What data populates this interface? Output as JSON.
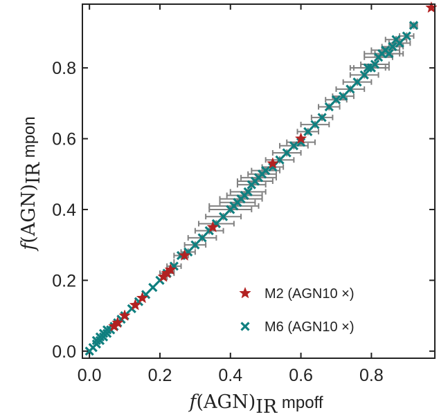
{
  "chart_data": {
    "type": "scatter",
    "xlabel": {
      "math": "f(AGN)",
      "sub": "IR",
      "text": " mpoff"
    },
    "ylabel": {
      "math": "f(AGN)",
      "sub": "IR",
      "text": " mpon"
    },
    "xlim": [
      -0.02,
      0.98
    ],
    "ylim": [
      -0.02,
      0.98
    ],
    "xticks": [
      0.0,
      0.2,
      0.4,
      0.6,
      0.8
    ],
    "yticks": [
      0.0,
      0.2,
      0.4,
      0.6,
      0.8
    ],
    "xtick_labels": [
      "0.0",
      "0.2",
      "0.4",
      "0.6",
      "0.8"
    ],
    "ytick_labels": [
      "0.0",
      "0.2",
      "0.4",
      "0.6",
      "0.8"
    ],
    "grid": false,
    "legend_position": "lower-right",
    "colors": {
      "M2": "#b22222",
      "M6": "#0f7f7f",
      "errorbar": "#808080",
      "axis": "#222222"
    },
    "series": [
      {
        "name": "M2 (AGN10 ×)",
        "marker": "star",
        "x": [
          0.07,
          0.08,
          0.1,
          0.13,
          0.15,
          0.21,
          0.22,
          0.23,
          0.27,
          0.35,
          0.52,
          0.6,
          0.97
        ],
        "y": [
          0.07,
          0.08,
          0.1,
          0.13,
          0.15,
          0.21,
          0.22,
          0.23,
          0.27,
          0.35,
          0.53,
          0.6,
          0.97
        ]
      },
      {
        "name": "M6 (AGN10 ×)",
        "marker": "x",
        "x": [
          0.0,
          0.01,
          0.02,
          0.02,
          0.03,
          0.03,
          0.04,
          0.04,
          0.05,
          0.05,
          0.06,
          0.07,
          0.08,
          0.09,
          0.1,
          0.12,
          0.14,
          0.16,
          0.18,
          0.2,
          0.22,
          0.24,
          0.26,
          0.28,
          0.3,
          0.32,
          0.34,
          0.36,
          0.38,
          0.4,
          0.41,
          0.42,
          0.43,
          0.44,
          0.45,
          0.46,
          0.47,
          0.48,
          0.49,
          0.5,
          0.52,
          0.54,
          0.56,
          0.58,
          0.6,
          0.62,
          0.64,
          0.66,
          0.68,
          0.7,
          0.72,
          0.74,
          0.76,
          0.78,
          0.79,
          0.8,
          0.81,
          0.82,
          0.83,
          0.84,
          0.85,
          0.86,
          0.87,
          0.88,
          0.9,
          0.92
        ],
        "y": [
          0.0,
          0.01,
          0.02,
          0.03,
          0.03,
          0.04,
          0.04,
          0.05,
          0.05,
          0.06,
          0.06,
          0.07,
          0.08,
          0.09,
          0.1,
          0.12,
          0.14,
          0.16,
          0.18,
          0.2,
          0.22,
          0.24,
          0.27,
          0.28,
          0.3,
          0.32,
          0.34,
          0.36,
          0.38,
          0.4,
          0.41,
          0.42,
          0.43,
          0.44,
          0.45,
          0.47,
          0.48,
          0.49,
          0.5,
          0.51,
          0.52,
          0.54,
          0.56,
          0.58,
          0.59,
          0.62,
          0.64,
          0.66,
          0.69,
          0.71,
          0.72,
          0.74,
          0.76,
          0.78,
          0.8,
          0.8,
          0.81,
          0.83,
          0.84,
          0.85,
          0.84,
          0.86,
          0.88,
          0.87,
          0.89,
          0.92
        ],
        "xerr": [
          0.0,
          0.0,
          0.0,
          0.0,
          0.0,
          0.0,
          0.0,
          0.0,
          0.0,
          0.0,
          0.0,
          0.0,
          0.0,
          0.0,
          0.0,
          0.0,
          0.0,
          0.0,
          0.0,
          0.0,
          0.02,
          0.02,
          0.02,
          0.02,
          0.03,
          0.04,
          0.04,
          0.05,
          0.05,
          0.06,
          0.07,
          0.05,
          0.06,
          0.05,
          0.05,
          0.04,
          0.05,
          0.05,
          0.04,
          0.04,
          0.03,
          0.04,
          0.04,
          0.04,
          0.04,
          0.03,
          0.04,
          0.03,
          0.03,
          0.03,
          0.03,
          0.04,
          0.04,
          0.04,
          0.05,
          0.05,
          0.04,
          0.04,
          0.05,
          0.04,
          0.04,
          0.03,
          0.03,
          0.03,
          0.02,
          0.01
        ],
        "yerr": [
          0.0,
          0.0,
          0.0,
          0.0,
          0.0,
          0.0,
          0.0,
          0.0,
          0.0,
          0.0,
          0.0,
          0.0,
          0.0,
          0.0,
          0.0,
          0.0,
          0.0,
          0.0,
          0.0,
          0.0,
          0.02,
          0.02,
          0.01,
          0.01,
          0.01,
          0.01,
          0.01,
          0.01,
          0.01,
          0.01,
          0.01,
          0.01,
          0.01,
          0.01,
          0.01,
          0.01,
          0.01,
          0.01,
          0.01,
          0.01,
          0.01,
          0.01,
          0.01,
          0.01,
          0.01,
          0.01,
          0.01,
          0.01,
          0.01,
          0.01,
          0.01,
          0.01,
          0.01,
          0.01,
          0.01,
          0.01,
          0.01,
          0.01,
          0.01,
          0.01,
          0.01,
          0.01,
          0.01,
          0.01,
          0.01,
          0.01
        ]
      }
    ]
  }
}
